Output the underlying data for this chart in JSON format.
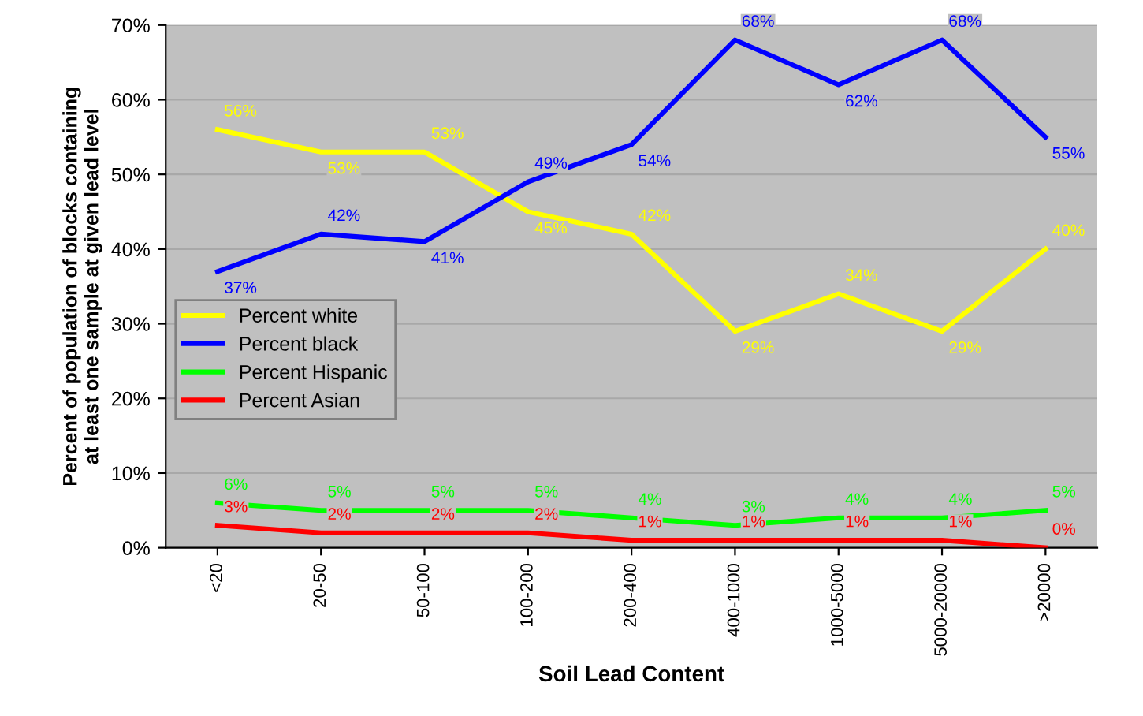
{
  "chart_data": {
    "type": "line",
    "xlabel": "Soil Lead Content",
    "ylabel": "Percent of population of blocks containing\nat least one sample at given lead level",
    "categories": [
      "<20",
      "20-50",
      "50-100",
      "100-200",
      "200-400",
      "400-1000",
      "1000-5000",
      "5000-20000",
      ">20000"
    ],
    "series": [
      {
        "name": "Percent white",
        "color": "#ffff00",
        "values": [
          56,
          53,
          53,
          45,
          42,
          29,
          34,
          29,
          40
        ],
        "value_labels": [
          "56%",
          "53%",
          "53%",
          "45%",
          "42%",
          "29%",
          "34%",
          "29%",
          "40%"
        ]
      },
      {
        "name": "Percent black",
        "color": "#0000ff",
        "values": [
          37,
          42,
          41,
          49,
          54,
          68,
          62,
          68,
          55
        ],
        "value_labels": [
          "37%",
          "42%",
          "41%",
          "49%",
          "54%",
          "68%",
          "62%",
          "68%",
          "55%"
        ]
      },
      {
        "name": "Percent Hispanic",
        "color": "#00ff00",
        "values": [
          6,
          5,
          5,
          5,
          4,
          3,
          4,
          4,
          5
        ],
        "value_labels": [
          "6%",
          "5%",
          "5%",
          "5%",
          "4%",
          "3%",
          "4%",
          "4%",
          "5%"
        ]
      },
      {
        "name": "Percent Asian",
        "color": "#ff0000",
        "values": [
          3,
          2,
          2,
          2,
          1,
          1,
          1,
          1,
          0
        ],
        "value_labels": [
          "3%",
          "2%",
          "2%",
          "2%",
          "1%",
          "1%",
          "1%",
          "1%",
          "0%"
        ]
      }
    ],
    "ylim": [
      0,
      70
    ],
    "yticks": [
      {
        "value": 0,
        "label": "0%"
      },
      {
        "value": 10,
        "label": "10%"
      },
      {
        "value": 20,
        "label": "20%"
      },
      {
        "value": 30,
        "label": "30%"
      },
      {
        "value": 40,
        "label": "40%"
      },
      {
        "value": 50,
        "label": "50%"
      },
      {
        "value": 60,
        "label": "60%"
      },
      {
        "value": 70,
        "label": "70%"
      }
    ],
    "grid": "y",
    "legend": "left",
    "marker": "none",
    "line_style": "solid"
  }
}
